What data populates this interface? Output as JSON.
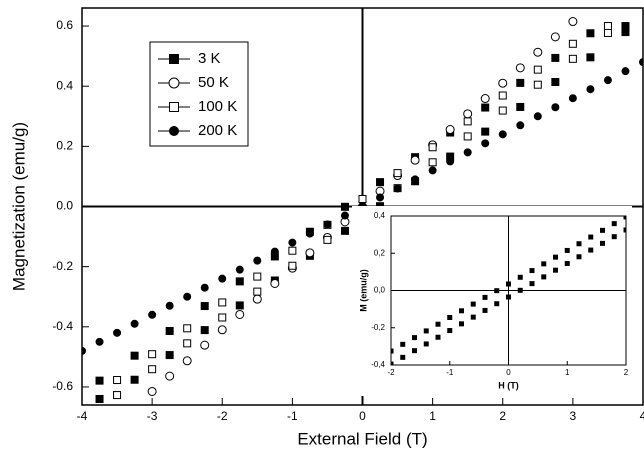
{
  "chart_data": [
    {
      "type": "scatter",
      "xlabel": "External Field (T)",
      "ylabel": "Magnetization (emu/g)",
      "xlim": [
        -4,
        4
      ],
      "ylim": [
        -0.66,
        0.66
      ],
      "xticks": [
        -4,
        -3,
        -2,
        -1,
        0,
        1,
        2,
        3,
        4
      ],
      "yticks": [
        -0.6,
        -0.4,
        -0.2,
        {
          "value": 0,
          "label": "0.0"
        },
        0.2,
        0.4,
        0.6
      ],
      "zero_lines": true,
      "legend": "upper left",
      "series": [
        {
          "name": "3 K",
          "marker": "square-filled",
          "color": "#000000",
          "x": [
            -3.75,
            -3.25,
            -2.75,
            -2.25,
            -1.75,
            -1.25,
            -0.75,
            -0.25,
            0.25,
            0.75,
            1.25,
            1.75,
            2.25,
            2.75,
            3.25,
            3.75,
            -3.75,
            -3.25,
            -2.75,
            -2.25,
            -1.75,
            -1.25,
            -0.75,
            -0.25,
            0.25,
            0.75,
            1.25,
            1.75,
            2.25,
            2.75,
            3.25,
            3.75
          ],
          "y": [
            -0.579,
            -0.496,
            -0.414,
            -0.331,
            -0.249,
            -0.166,
            -0.084,
            -0.001,
            0.081,
            0.164,
            0.246,
            0.329,
            0.411,
            0.494,
            0.576,
            0.6,
            -0.64,
            -0.576,
            -0.494,
            -0.411,
            -0.329,
            -0.246,
            -0.164,
            -0.081,
            0.001,
            0.084,
            0.166,
            0.249,
            0.331,
            0.414,
            0.496,
            0.58
          ]
        },
        {
          "name": "50 K",
          "marker": "circle-open",
          "color": "#000000",
          "x": [
            -3,
            -2.75,
            -2.5,
            -2.25,
            -2,
            -1.75,
            -1.5,
            -1.25,
            -1,
            -0.75,
            -0.5,
            -0.25,
            0,
            0.25,
            0.5,
            0.75,
            1,
            1.25,
            1.5,
            1.75,
            2,
            2.25,
            2.5,
            2.75,
            3
          ],
          "y": [
            -0.615,
            -0.564,
            -0.513,
            -0.461,
            -0.41,
            -0.359,
            -0.308,
            -0.256,
            -0.205,
            -0.154,
            -0.103,
            -0.051,
            0,
            0.051,
            0.103,
            0.154,
            0.205,
            0.256,
            0.308,
            0.359,
            0.41,
            0.461,
            0.513,
            0.564,
            0.615
          ]
        },
        {
          "name": "100 K",
          "marker": "square-open",
          "color": "#000000",
          "x": [
            -3.5,
            -3,
            -2.5,
            -2,
            -1.5,
            -1,
            -0.5,
            0,
            0.5,
            1,
            1.5,
            2,
            2.5,
            3,
            3.5,
            -3.5,
            -3,
            -2.5,
            -2,
            -1.5,
            -1,
            -0.5,
            0,
            0.5,
            1,
            1.5,
            2,
            2.5,
            3,
            3.5
          ],
          "y": [
            -0.577,
            -0.491,
            -0.405,
            -0.319,
            -0.233,
            -0.147,
            -0.061,
            0.025,
            0.111,
            0.197,
            0.283,
            0.369,
            0.455,
            0.541,
            0.6,
            -0.627,
            -0.541,
            -0.455,
            -0.369,
            -0.283,
            -0.197,
            -0.111,
            -0.025,
            0.061,
            0.147,
            0.233,
            0.319,
            0.405,
            0.491,
            0.577
          ]
        },
        {
          "name": "200 K",
          "marker": "circle-filled",
          "color": "#000000",
          "x": [
            -4,
            -3.75,
            -3.5,
            -3.25,
            -3,
            -2.75,
            -2.5,
            -2.25,
            -2,
            -1.75,
            -1.5,
            -1.25,
            -1,
            -0.75,
            -0.5,
            -0.25,
            0,
            0.25,
            0.5,
            0.75,
            1,
            1.25,
            1.5,
            1.75,
            2,
            2.25,
            2.5,
            2.75,
            3,
            3.25,
            3.5,
            3.75,
            4
          ],
          "y": [
            -0.48,
            -0.45,
            -0.42,
            -0.39,
            -0.36,
            -0.33,
            -0.3,
            -0.27,
            -0.24,
            -0.21,
            -0.18,
            -0.15,
            -0.12,
            -0.09,
            -0.06,
            -0.03,
            0,
            0.03,
            0.06,
            0.09,
            0.12,
            0.15,
            0.18,
            0.21,
            0.24,
            0.27,
            0.3,
            0.33,
            0.36,
            0.39,
            0.42,
            0.45,
            0.48
          ]
        }
      ]
    },
    {
      "type": "scatter",
      "xlabel": "H (T)",
      "ylabel": "M (emu/g)",
      "xlim": [
        -2,
        2
      ],
      "ylim": [
        -0.4,
        0.4
      ],
      "xticks": [
        -2,
        -1,
        0,
        1,
        2
      ],
      "yticks": [
        {
          "value": -0.4,
          "label": "-0,4"
        },
        {
          "value": -0.2,
          "label": "-0,2"
        },
        {
          "value": 0,
          "label": "0,0"
        },
        {
          "value": 0.2,
          "label": "0,2"
        },
        {
          "value": 0.4,
          "label": "0,4"
        }
      ],
      "zero_lines": true,
      "series": [
        {
          "marker": "square-filled",
          "color": "#000000",
          "x": [
            -2,
            -1.8,
            -1.6,
            -1.4,
            -1.2,
            -1,
            -0.8,
            -0.6,
            -0.4,
            -0.2,
            0,
            0.2,
            0.4,
            0.6,
            0.8,
            1,
            1.2,
            1.4,
            1.6,
            1.8,
            2,
            -2,
            -1.8,
            -1.6,
            -1.4,
            -1.2,
            -1,
            -0.8,
            -0.6,
            -0.4,
            -0.2,
            0,
            0.2,
            0.4,
            0.6,
            0.8,
            1,
            1.2,
            1.4,
            1.6,
            1.8,
            2
          ],
          "y": [
            -0.325,
            -0.289,
            -0.253,
            -0.217,
            -0.181,
            -0.145,
            -0.109,
            -0.073,
            -0.037,
            -0.001,
            0.035,
            0.071,
            0.107,
            0.143,
            0.179,
            0.215,
            0.251,
            0.287,
            0.323,
            0.359,
            0.395,
            -0.395,
            -0.359,
            -0.323,
            -0.287,
            -0.251,
            -0.215,
            -0.179,
            -0.143,
            -0.107,
            -0.071,
            -0.035,
            0.001,
            0.037,
            0.073,
            0.109,
            0.145,
            0.181,
            0.217,
            0.253,
            0.289,
            0.325
          ]
        }
      ]
    }
  ]
}
